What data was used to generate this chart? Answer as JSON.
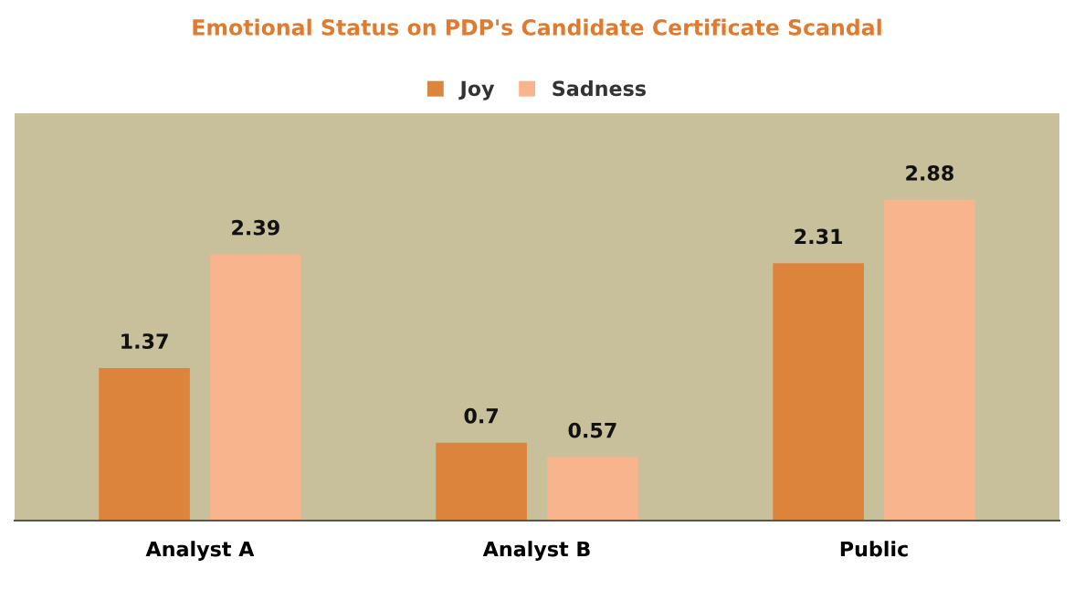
{
  "chart_data": {
    "type": "bar",
    "title": "Emotional Status on PDP's Candidate Certificate Scandal",
    "categories": [
      "Analyst A",
      "Analyst B",
      "Public"
    ],
    "series": [
      {
        "name": "Joy",
        "color": "#dc843c",
        "values": [
          1.37,
          0.7,
          2.31
        ]
      },
      {
        "name": "Sadness",
        "color": "#f8b48c",
        "values": [
          2.39,
          0.57,
          2.88
        ]
      }
    ],
    "data_labels": true,
    "legend": "top",
    "grid": false
  }
}
